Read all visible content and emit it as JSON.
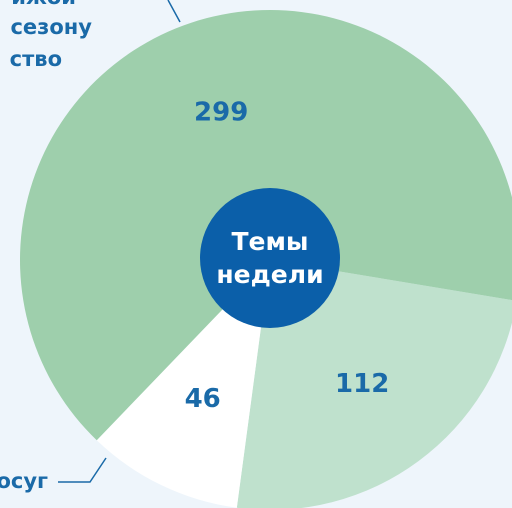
{
  "chart_data": {
    "type": "pie",
    "categories": [
      null,
      [
        "осуг"
      ],
      [
        "ижой",
        "сезону",
        "ство"
      ]
    ],
    "values": [
      112,
      46,
      299
    ],
    "colors": [
      "#bfe1cd",
      "#ffffff",
      "#9ecfac"
    ],
    "center_label": [
      "Темы",
      "недели"
    ]
  }
}
